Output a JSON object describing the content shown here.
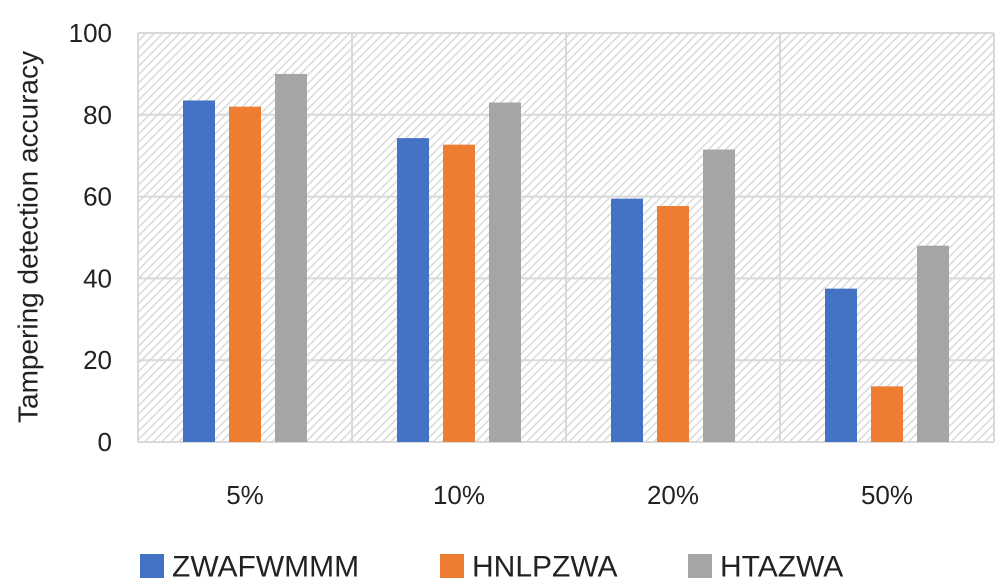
{
  "chart_data": {
    "type": "bar",
    "title": "",
    "xlabel": "",
    "ylabel": "Tampering detection accuracy",
    "ylim": [
      0,
      100
    ],
    "yticks": [
      0,
      20,
      40,
      60,
      80,
      100
    ],
    "categories": [
      "5%",
      "10%",
      "20%",
      "50%"
    ],
    "series": [
      {
        "name": "ZWAFWMMM",
        "color": "#4472c4",
        "values": [
          83.5,
          74.3,
          59.5,
          37.5
        ]
      },
      {
        "name": "HNLPZWA",
        "color": "#ed7d31",
        "values": [
          82,
          72.7,
          57.7,
          13.6
        ]
      },
      {
        "name": "HTAZWA",
        "color": "#a5a5a5",
        "values": [
          90,
          83,
          71.5,
          48
        ]
      }
    ],
    "grid": true,
    "legend_position": "bottom"
  }
}
